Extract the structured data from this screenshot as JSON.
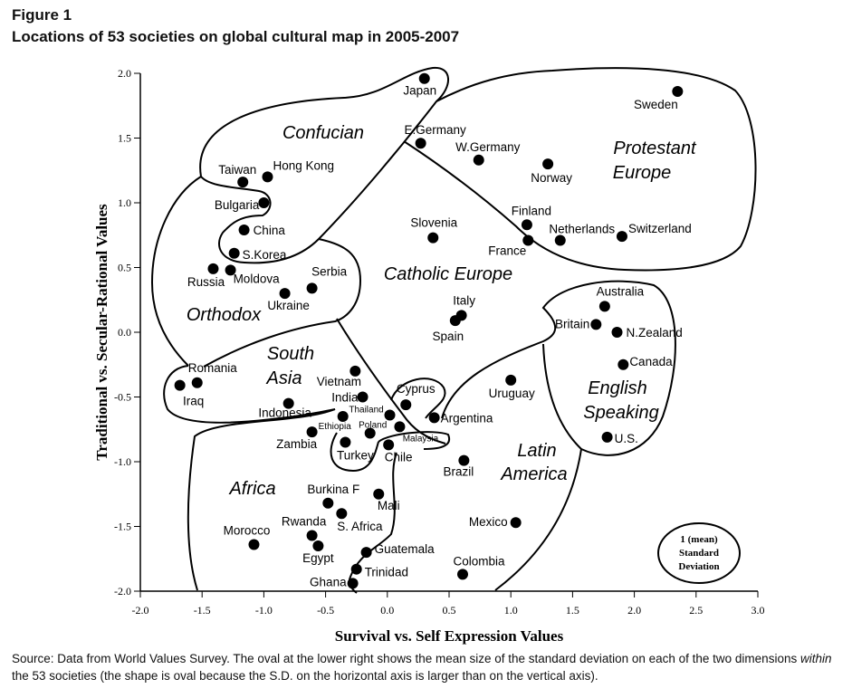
{
  "figure_label": "Figure 1",
  "title": "Locations of 53 societies on global cultural map in 2005-2007",
  "source_note": {
    "before_italic": "Source: Data from World Values Survey. The oval at the lower right shows the mean size of the standard deviation on each of the two dimensions ",
    "italic": "within",
    "after_italic": " the 53 societies (the shape is oval because the S.D. on the horizontal axis is larger than on the vertical axis)."
  },
  "chart_data": {
    "type": "scatter",
    "title": "Locations of 53 societies on global cultural map in 2005-2007",
    "xlabel": "Survival vs. Self Expression Values",
    "ylabel": "Traditional vs. Secular-Rational Values",
    "xlim": [
      -2.0,
      3.0
    ],
    "ylim": [
      -2.0,
      2.0
    ],
    "xticks": [
      "-2.0",
      "-1.5",
      "-1.0",
      "-0.5",
      "0.0",
      "0.5",
      "1.0",
      "1.5",
      "2.0",
      "2.5",
      "3.0"
    ],
    "yticks": [
      "2.0",
      "1.5",
      "1.0",
      "0.5",
      "0.0",
      "-0.5",
      "-1.0",
      "-1.5",
      "-2.0"
    ],
    "grid": false,
    "marker_color": "#000000",
    "points": [
      {
        "label": "Japan",
        "x": 0.3,
        "y": 1.96
      },
      {
        "label": "Sweden",
        "x": 2.35,
        "y": 1.86
      },
      {
        "label": "E.Germany",
        "x": 0.27,
        "y": 1.46
      },
      {
        "label": "W.Germany",
        "x": 0.74,
        "y": 1.33
      },
      {
        "label": "Norway",
        "x": 1.3,
        "y": 1.3
      },
      {
        "label": "Taiwan",
        "x": -1.17,
        "y": 1.16
      },
      {
        "label": "Hong Kong",
        "x": -0.97,
        "y": 1.2
      },
      {
        "label": "Bulgaria",
        "x": -1.0,
        "y": 1.0
      },
      {
        "label": "China",
        "x": -1.16,
        "y": 0.79
      },
      {
        "label": "Finland",
        "x": 1.13,
        "y": 0.83
      },
      {
        "label": "France",
        "x": 1.14,
        "y": 0.71
      },
      {
        "label": "Netherlands",
        "x": 1.4,
        "y": 0.71
      },
      {
        "label": "Switzerland",
        "x": 1.9,
        "y": 0.74
      },
      {
        "label": "Slovenia",
        "x": 0.37,
        "y": 0.73
      },
      {
        "label": "S.Korea",
        "x": -1.24,
        "y": 0.61
      },
      {
        "label": "Russia",
        "x": -1.41,
        "y": 0.49
      },
      {
        "label": "Moldova",
        "x": -1.27,
        "y": 0.48
      },
      {
        "label": "Serbia",
        "x": -0.61,
        "y": 0.34
      },
      {
        "label": "Ukraine",
        "x": -0.83,
        "y": 0.3
      },
      {
        "label": "Australia",
        "x": 1.76,
        "y": 0.2
      },
      {
        "label": "Italy",
        "x": 0.6,
        "y": 0.13
      },
      {
        "label": "Spain",
        "x": 0.55,
        "y": 0.09
      },
      {
        "label": "Britain",
        "x": 1.69,
        "y": 0.06
      },
      {
        "label": "N.Zealand",
        "x": 1.86,
        "y": 0.0
      },
      {
        "label": "Canada",
        "x": 1.91,
        "y": -0.25
      },
      {
        "label": "Romania",
        "x": -1.54,
        "y": -0.39
      },
      {
        "label": "Iraq",
        "x": -1.68,
        "y": -0.41
      },
      {
        "label": "Vietnam",
        "x": -0.26,
        "y": -0.3
      },
      {
        "label": "Uruguay",
        "x": 1.0,
        "y": -0.37
      },
      {
        "label": "India",
        "x": -0.2,
        "y": -0.5
      },
      {
        "label": "Cyprus",
        "x": 0.15,
        "y": -0.56
      },
      {
        "label": "Indonesia",
        "x": -0.8,
        "y": -0.55
      },
      {
        "label": "Ethiopia",
        "x": -0.36,
        "y": -0.65
      },
      {
        "label": "Thailand",
        "x": 0.02,
        "y": -0.64
      },
      {
        "label": "Argentina",
        "x": 0.38,
        "y": -0.66
      },
      {
        "label": "Zambia",
        "x": -0.61,
        "y": -0.77
      },
      {
        "label": "Poland",
        "x": -0.14,
        "y": -0.78
      },
      {
        "label": "Malaysia",
        "x": 0.1,
        "y": -0.73
      },
      {
        "label": "U.S.",
        "x": 1.78,
        "y": -0.81
      },
      {
        "label": "Turkey",
        "x": -0.34,
        "y": -0.85
      },
      {
        "label": "Chile",
        "x": 0.01,
        "y": -0.87
      },
      {
        "label": "Brazil",
        "x": 0.62,
        "y": -0.99
      },
      {
        "label": "Burkina F",
        "x": -0.48,
        "y": -1.32
      },
      {
        "label": "Mali",
        "x": -0.07,
        "y": -1.25
      },
      {
        "label": "S. Africa",
        "x": -0.37,
        "y": -1.4
      },
      {
        "label": "Mexico",
        "x": 1.04,
        "y": -1.47
      },
      {
        "label": "Rwanda",
        "x": -0.61,
        "y": -1.57
      },
      {
        "label": "Morocco",
        "x": -1.08,
        "y": -1.64
      },
      {
        "label": "Egypt",
        "x": -0.56,
        "y": -1.65
      },
      {
        "label": "Guatemala",
        "x": -0.17,
        "y": -1.7
      },
      {
        "label": "Trinidad",
        "x": -0.25,
        "y": -1.83
      },
      {
        "label": "Colombia",
        "x": 0.61,
        "y": -1.87
      },
      {
        "label": "Ghana",
        "x": -0.28,
        "y": -1.94
      }
    ],
    "regions": {
      "confucian": [
        "Confucian"
      ],
      "protestant": [
        "Protestant",
        "Europe"
      ],
      "catholic": [
        "Catholic Europe"
      ],
      "orthodox": [
        "Orthodox"
      ],
      "south_asia": [
        "South",
        "Asia"
      ],
      "english": [
        "English",
        "Speaking"
      ],
      "latin": [
        "Latin",
        "America"
      ],
      "africa": [
        "Africa"
      ]
    },
    "sd_legend": [
      "1 (mean)",
      "Standard",
      "Deviation"
    ]
  }
}
